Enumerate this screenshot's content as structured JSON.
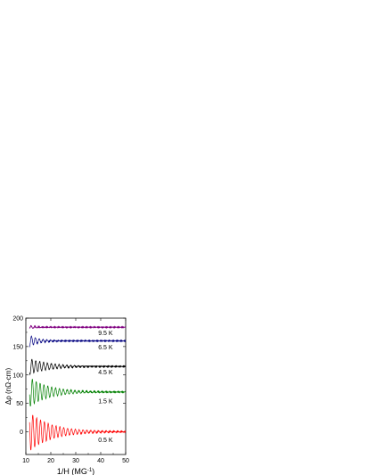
{
  "chart_data": {
    "type": "line",
    "xlabel": "1/H (MG",
    "xlabel_sup": "-1",
    "xlabel_close": ")",
    "ylabel": "Δρ (nΩ·cm)",
    "xlim": [
      10,
      50
    ],
    "ylim": [
      -40,
      200
    ],
    "xticks": [
      "10",
      "20",
      "30",
      "40",
      "50"
    ],
    "yticks": [
      "0",
      "50",
      "100",
      "150",
      "200"
    ],
    "xtick_values": [
      10,
      20,
      30,
      40,
      50
    ],
    "ytick_values": [
      0,
      50,
      100,
      150,
      200
    ],
    "grid": false,
    "series": [
      {
        "name": "0.5 K",
        "color": "#ff0000",
        "offset": 0,
        "amplitude": 34,
        "decay": 9,
        "label_x": 39,
        "label_y": -18
      },
      {
        "name": "1.5 K",
        "color": "#008000",
        "offset": 70,
        "amplitude": 26,
        "decay": 8,
        "label_x": 39,
        "label_y": 50
      },
      {
        "name": "4.5 K",
        "color": "#000000",
        "offset": 115,
        "amplitude": 14,
        "decay": 8,
        "label_x": 39,
        "label_y": 101
      },
      {
        "name": "6.5 K",
        "color": "#000080",
        "offset": 160,
        "amplitude": 10,
        "decay": 4,
        "label_x": 39,
        "label_y": 145
      },
      {
        "name": "9.5 K",
        "color": "#800080",
        "offset": 184,
        "amplitude": 3,
        "decay": 3,
        "label_x": 39,
        "label_y": 170
      }
    ]
  }
}
